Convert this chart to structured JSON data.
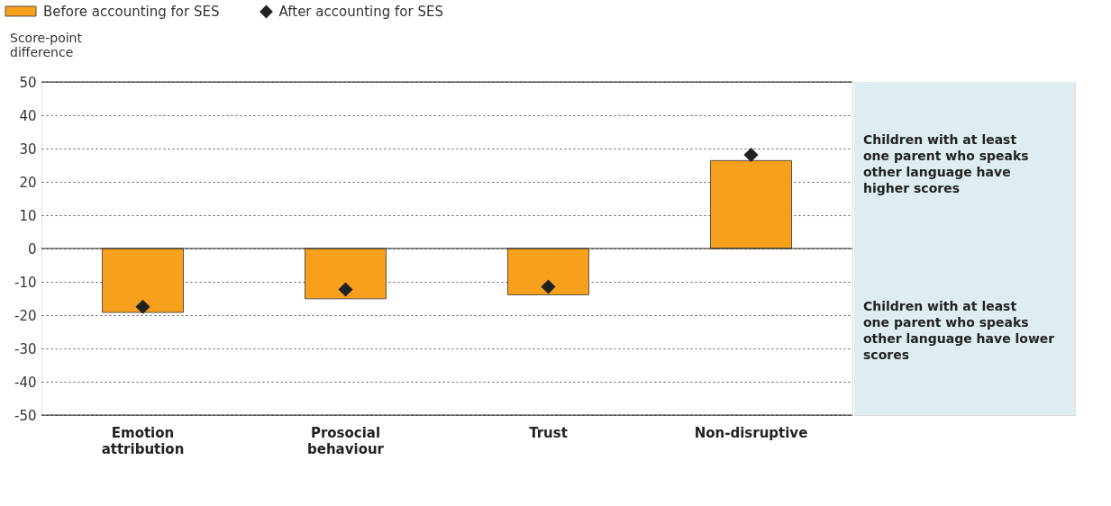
{
  "chart_data": [
    {
      "type": "bar",
      "ylabel": "Score-point difference",
      "categories": [
        "Emotion attribution",
        "Prosocial behaviour",
        "Trust",
        "Non-disruptive"
      ],
      "series": [
        {
          "name": "Before accounting for SES",
          "color": "#f6a01e",
          "values": [
            -19.2,
            -15.1,
            -13.9,
            26.4
          ]
        },
        {
          "name": "After accounting for SES",
          "color": "#222222",
          "type": "scatter",
          "marker": "diamond",
          "values": [
            -17.5,
            -12.3,
            -11.5,
            28.1
          ]
        }
      ],
      "ylim": [
        -50,
        50
      ],
      "yticks": [
        -50,
        -40,
        -30,
        -20,
        -10,
        0,
        10,
        20,
        30,
        40,
        50
      ],
      "grid": "y",
      "legend": "top left",
      "ref_lines": [
        {
          "axis": "y",
          "value": 0,
          "color": "#222222"
        }
      ]
    },
    {
      "type": "other",
      "annotations": [
        "Children with at least one parent who speaks other language have higher scores",
        "Children with at least one parent who speaks other language have lower scores"
      ]
    }
  ]
}
